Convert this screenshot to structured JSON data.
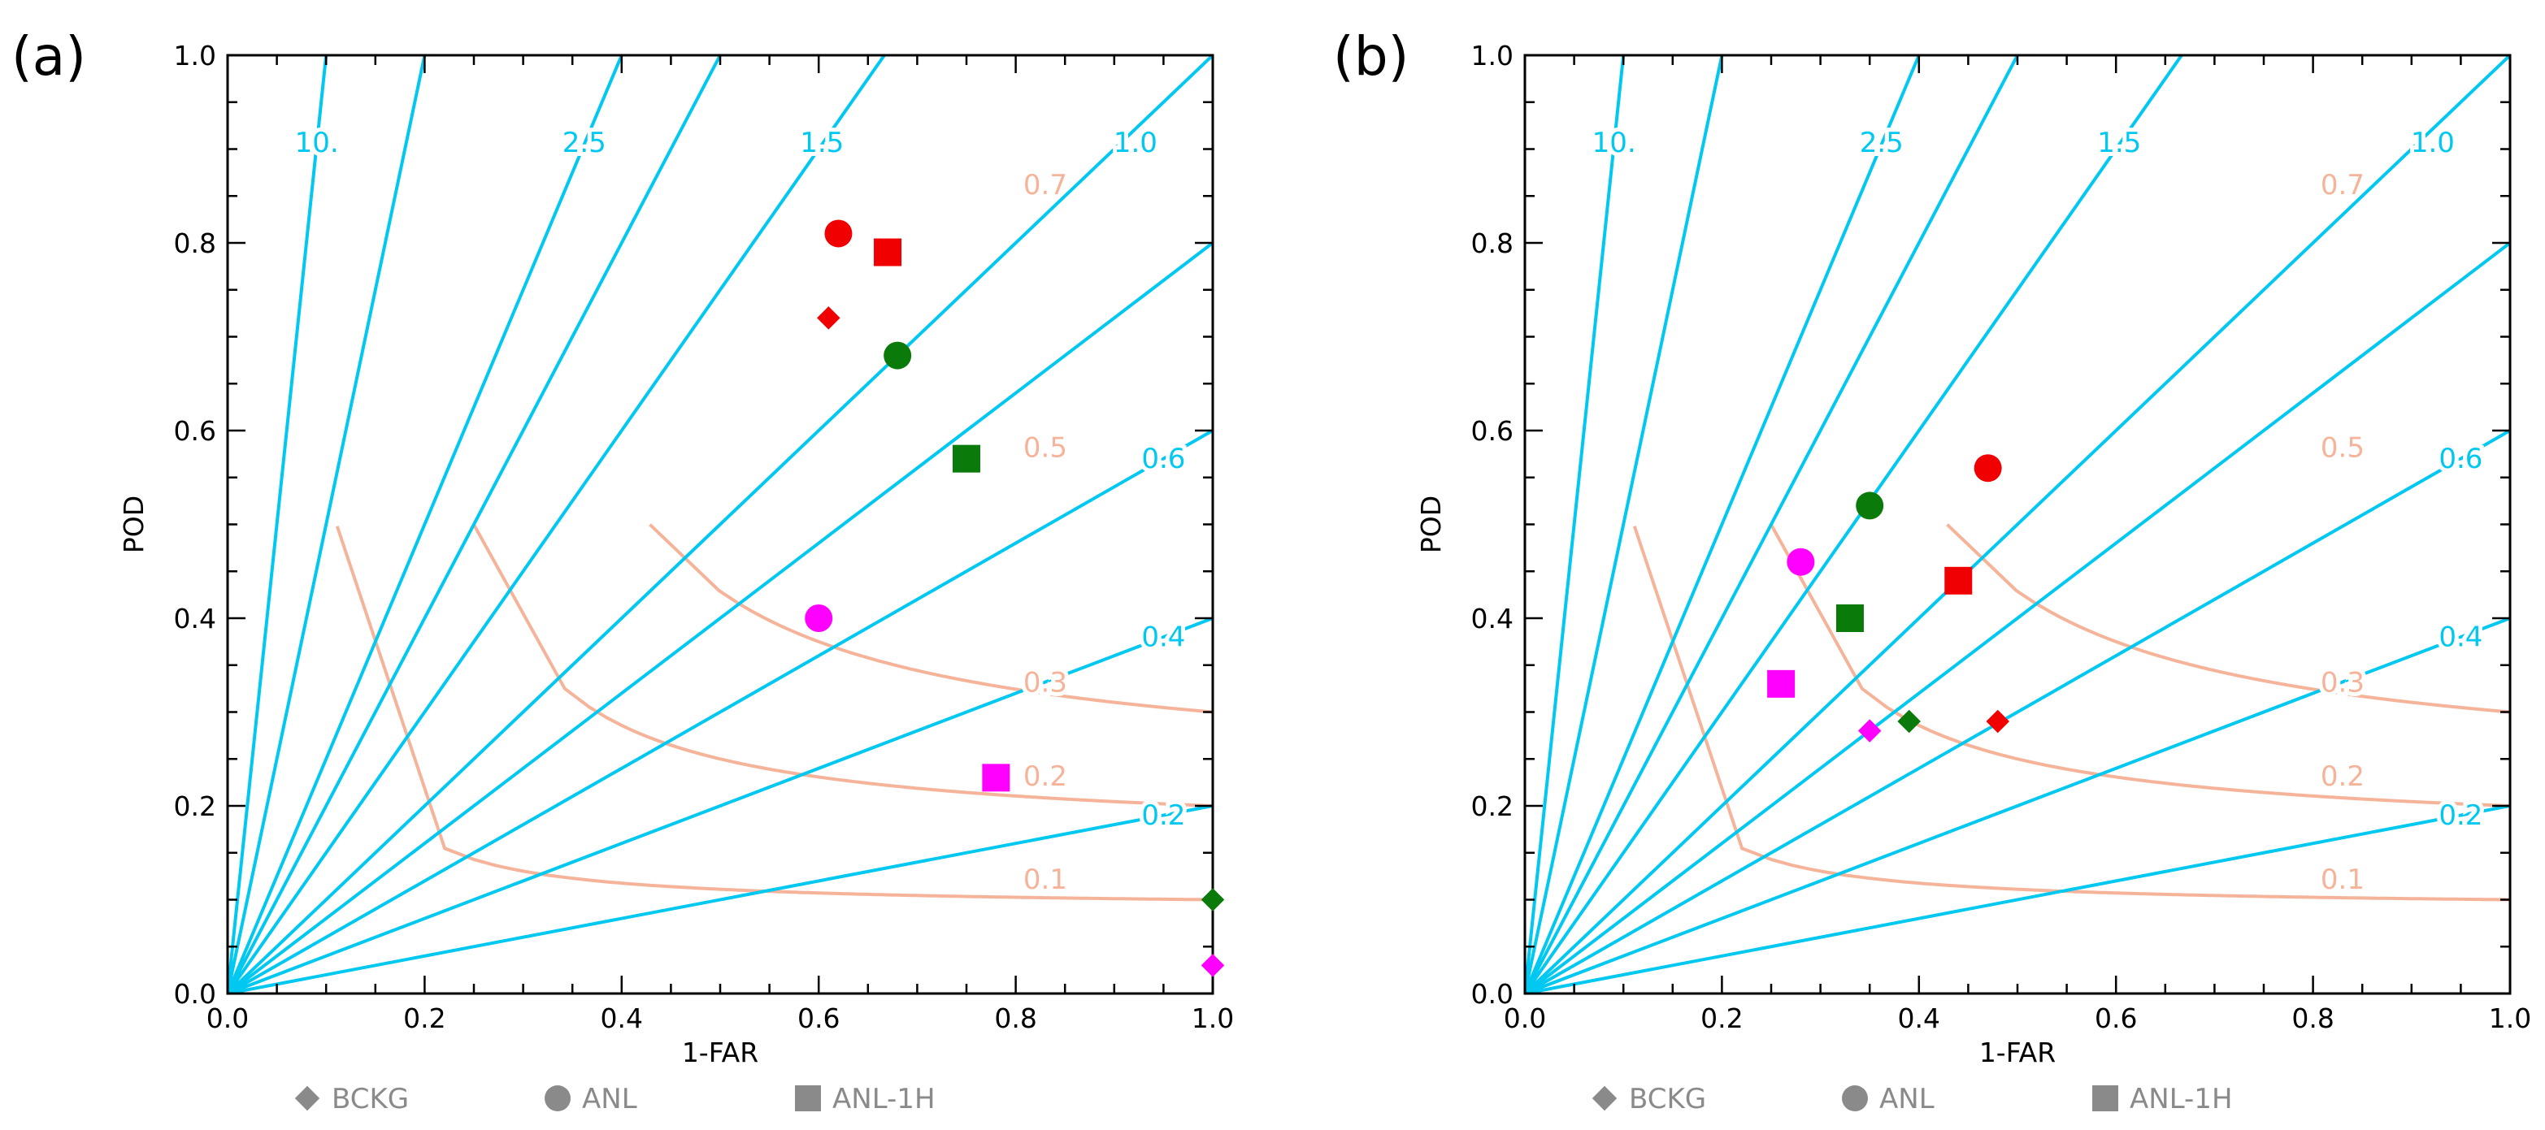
{
  "chart_data": [
    {
      "type": "scatter",
      "subtype": "performance-diagram",
      "panel_label": "(a)",
      "xlabel": "1-FAR",
      "ylabel": "POD",
      "xlim": [
        0,
        1
      ],
      "ylim": [
        0,
        1
      ],
      "xticks": [
        "0.0",
        "0.2",
        "0.4",
        "0.6",
        "0.8",
        "1.0"
      ],
      "yticks": [
        "0.0",
        "0.2",
        "0.4",
        "0.6",
        "0.8",
        "1.0"
      ],
      "bias_lines": [
        {
          "value": 10,
          "label": "10."
        },
        {
          "value": 5,
          "label": ""
        },
        {
          "value": 2.5,
          "label": "2.5"
        },
        {
          "value": 2,
          "label": ""
        },
        {
          "value": 1.5,
          "label": "1.5"
        },
        {
          "value": 1,
          "label": "1.0"
        },
        {
          "value": 0.8,
          "label": ""
        },
        {
          "value": 0.6,
          "label": "0.6"
        },
        {
          "value": 0.4,
          "label": "0.4"
        },
        {
          "value": 0.2,
          "label": "0.2"
        }
      ],
      "csi_curves": [
        {
          "value": 0.1,
          "label": "0.1"
        },
        {
          "value": 0.2,
          "label": "0.2"
        },
        {
          "value": 0.3,
          "label": "0.3"
        },
        {
          "value": 0.5,
          "label": "0.5"
        },
        {
          "value": 0.7,
          "label": "0.7"
        }
      ],
      "points": [
        {
          "series": "BCKG",
          "group": "red",
          "x": 0.61,
          "y": 0.72
        },
        {
          "series": "ANL",
          "group": "red",
          "x": 0.62,
          "y": 0.81
        },
        {
          "series": "ANL-1H",
          "group": "red",
          "x": 0.67,
          "y": 0.79
        },
        {
          "series": "BCKG",
          "group": "green",
          "x": 1.0,
          "y": 0.1
        },
        {
          "series": "ANL",
          "group": "green",
          "x": 0.68,
          "y": 0.68
        },
        {
          "series": "ANL-1H",
          "group": "green",
          "x": 0.75,
          "y": 0.57
        },
        {
          "series": "BCKG",
          "group": "magenta",
          "x": 1.0,
          "y": 0.03
        },
        {
          "series": "ANL",
          "group": "magenta",
          "x": 0.6,
          "y": 0.4
        },
        {
          "series": "ANL-1H",
          "group": "magenta",
          "x": 0.78,
          "y": 0.23
        }
      ]
    },
    {
      "type": "scatter",
      "subtype": "performance-diagram",
      "panel_label": "(b)",
      "xlabel": "1-FAR",
      "ylabel": "POD",
      "xlim": [
        0,
        1
      ],
      "ylim": [
        0,
        1
      ],
      "xticks": [
        "0.0",
        "0.2",
        "0.4",
        "0.6",
        "0.8",
        "1.0"
      ],
      "yticks": [
        "0.0",
        "0.2",
        "0.4",
        "0.6",
        "0.8",
        "1.0"
      ],
      "bias_lines": [
        {
          "value": 10,
          "label": "10."
        },
        {
          "value": 5,
          "label": ""
        },
        {
          "value": 2.5,
          "label": "2.5"
        },
        {
          "value": 2,
          "label": ""
        },
        {
          "value": 1.5,
          "label": "1.5"
        },
        {
          "value": 1,
          "label": "1.0"
        },
        {
          "value": 0.8,
          "label": ""
        },
        {
          "value": 0.6,
          "label": "0.6"
        },
        {
          "value": 0.4,
          "label": "0.4"
        },
        {
          "value": 0.2,
          "label": "0.2"
        }
      ],
      "csi_curves": [
        {
          "value": 0.1,
          "label": "0.1"
        },
        {
          "value": 0.2,
          "label": "0.2"
        },
        {
          "value": 0.3,
          "label": "0.3"
        },
        {
          "value": 0.5,
          "label": "0.5"
        },
        {
          "value": 0.7,
          "label": "0.7"
        }
      ],
      "points": [
        {
          "series": "BCKG",
          "group": "red",
          "x": 0.48,
          "y": 0.29
        },
        {
          "series": "ANL",
          "group": "red",
          "x": 0.47,
          "y": 0.56
        },
        {
          "series": "ANL-1H",
          "group": "red",
          "x": 0.44,
          "y": 0.44
        },
        {
          "series": "BCKG",
          "group": "green",
          "x": 0.39,
          "y": 0.29
        },
        {
          "series": "ANL",
          "group": "green",
          "x": 0.35,
          "y": 0.52
        },
        {
          "series": "ANL-1H",
          "group": "green",
          "x": 0.33,
          "y": 0.4
        },
        {
          "series": "BCKG",
          "group": "magenta",
          "x": 0.35,
          "y": 0.28
        },
        {
          "series": "ANL",
          "group": "magenta",
          "x": 0.28,
          "y": 0.46
        },
        {
          "series": "ANL-1H",
          "group": "magenta",
          "x": 0.26,
          "y": 0.33
        }
      ]
    }
  ],
  "legend": [
    {
      "series": "BCKG",
      "marker": "diamond",
      "label": "BCKG"
    },
    {
      "series": "ANL",
      "marker": "circle",
      "label": "ANL"
    },
    {
      "series": "ANL-1H",
      "marker": "square",
      "label": "ANL-1H"
    }
  ],
  "colors": {
    "bias_line": "#00c8f0",
    "csi_curve": "#f5b49a",
    "red": "#f00000",
    "green": "#0a7a0a",
    "magenta": "#ff00ff",
    "legend_marker": "#8a8a8a",
    "legend_text": "#8a8a8a",
    "axis": "#000000"
  }
}
